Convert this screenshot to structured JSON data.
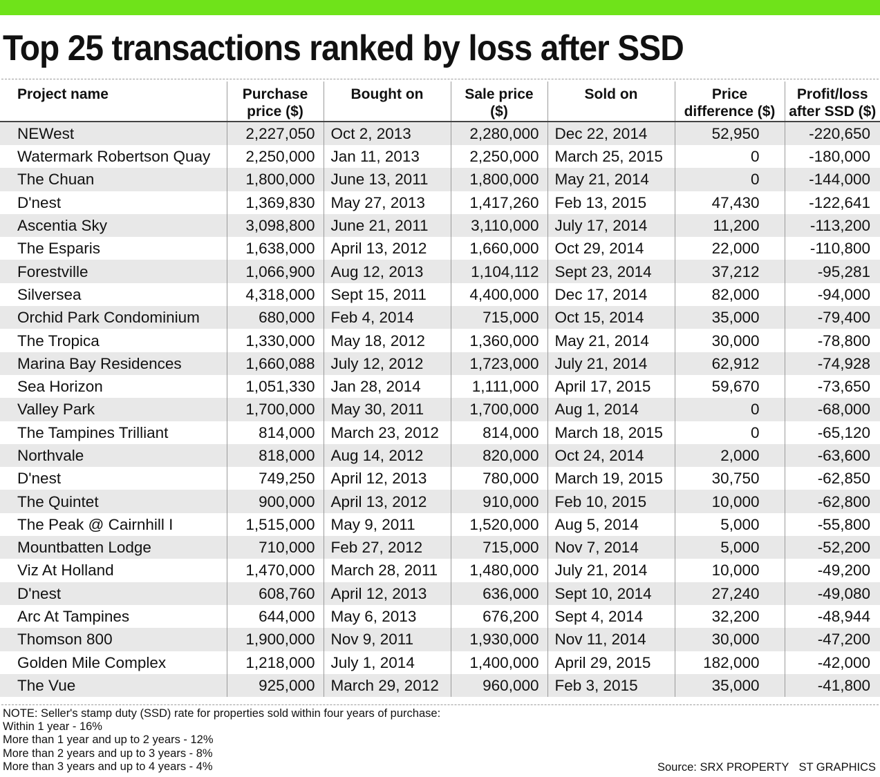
{
  "chart_data": {
    "type": "table",
    "title": "Top 25 transactions ranked by loss after SSD",
    "columns": [
      "Project name",
      "Purchase price ($)",
      "Bought on",
      "Sale price ($)",
      "Sold on",
      "Price difference ($)",
      "Profit/loss after SSD ($)"
    ],
    "rows": [
      {
        "project": "NEWest",
        "purchase": "2,227,050",
        "bought": "Oct 2, 2013",
        "sale": "2,280,000",
        "sold": "Dec 22, 2014",
        "diff": "52,950",
        "pl": "-220,650"
      },
      {
        "project": "Watermark Robertson Quay",
        "purchase": "2,250,000",
        "bought": "Jan 11, 2013",
        "sale": "2,250,000",
        "sold": "March 25, 2015",
        "diff": "0",
        "pl": "-180,000"
      },
      {
        "project": "The Chuan",
        "purchase": "1,800,000",
        "bought": "June 13, 2011",
        "sale": "1,800,000",
        "sold": "May 21, 2014",
        "diff": "0",
        "pl": "-144,000"
      },
      {
        "project": "D'nest",
        "purchase": "1,369,830",
        "bought": "May 27, 2013",
        "sale": "1,417,260",
        "sold": "Feb 13, 2015",
        "diff": "47,430",
        "pl": "-122,641"
      },
      {
        "project": "Ascentia Sky",
        "purchase": "3,098,800",
        "bought": "June 21, 2011",
        "sale": "3,110,000",
        "sold": "July 17, 2014",
        "diff": "11,200",
        "pl": "-113,200"
      },
      {
        "project": "The Esparis",
        "purchase": "1,638,000",
        "bought": "April 13, 2012",
        "sale": "1,660,000",
        "sold": "Oct 29, 2014",
        "diff": "22,000",
        "pl": "-110,800"
      },
      {
        "project": "Forestville",
        "purchase": "1,066,900",
        "bought": "Aug 12, 2013",
        "sale": "1,104,112",
        "sold": "Sept 23, 2014",
        "diff": "37,212",
        "pl": "-95,281"
      },
      {
        "project": "Silversea",
        "purchase": "4,318,000",
        "bought": "Sept 15, 2011",
        "sale": "4,400,000",
        "sold": "Dec 17, 2014",
        "diff": "82,000",
        "pl": "-94,000"
      },
      {
        "project": "Orchid Park Condominium",
        "purchase": "680,000",
        "bought": "Feb 4, 2014",
        "sale": "715,000",
        "sold": "Oct 15, 2014",
        "diff": "35,000",
        "pl": "-79,400"
      },
      {
        "project": "The Tropica",
        "purchase": "1,330,000",
        "bought": "May 18, 2012",
        "sale": "1,360,000",
        "sold": "May 21, 2014",
        "diff": "30,000",
        "pl": "-78,800"
      },
      {
        "project": "Marina Bay Residences",
        "purchase": "1,660,088",
        "bought": "July 12, 2012",
        "sale": "1,723,000",
        "sold": "July 21, 2014",
        "diff": "62,912",
        "pl": "-74,928"
      },
      {
        "project": "Sea Horizon",
        "purchase": "1,051,330",
        "bought": "Jan 28, 2014",
        "sale": "1,111,000",
        "sold": "April 17, 2015",
        "diff": "59,670",
        "pl": "-73,650"
      },
      {
        "project": "Valley Park",
        "purchase": "1,700,000",
        "bought": "May 30, 2011",
        "sale": "1,700,000",
        "sold": "Aug 1, 2014",
        "diff": "0",
        "pl": "-68,000"
      },
      {
        "project": "The Tampines Trilliant",
        "purchase": "814,000",
        "bought": "March 23, 2012",
        "sale": "814,000",
        "sold": "March 18, 2015",
        "diff": "0",
        "pl": "-65,120"
      },
      {
        "project": "Northvale",
        "purchase": "818,000",
        "bought": "Aug 14, 2012",
        "sale": "820,000",
        "sold": "Oct 24, 2014",
        "diff": "2,000",
        "pl": "-63,600"
      },
      {
        "project": "D'nest",
        "purchase": "749,250",
        "bought": "April 12, 2013",
        "sale": "780,000",
        "sold": "March 19, 2015",
        "diff": "30,750",
        "pl": "-62,850"
      },
      {
        "project": "The Quintet",
        "purchase": "900,000",
        "bought": "April 13, 2012",
        "sale": "910,000",
        "sold": "Feb 10, 2015",
        "diff": "10,000",
        "pl": "-62,800"
      },
      {
        "project": "The Peak @ Cairnhill I",
        "purchase": "1,515,000",
        "bought": "May 9, 2011",
        "sale": "1,520,000",
        "sold": "Aug 5, 2014",
        "diff": "5,000",
        "pl": "-55,800"
      },
      {
        "project": "Mountbatten Lodge",
        "purchase": "710,000",
        "bought": "Feb 27, 2012",
        "sale": "715,000",
        "sold": "Nov 7, 2014",
        "diff": "5,000",
        "pl": "-52,200"
      },
      {
        "project": "Viz At Holland",
        "purchase": "1,470,000",
        "bought": "March 28, 2011",
        "sale": "1,480,000",
        "sold": "July 21, 2014",
        "diff": "10,000",
        "pl": "-49,200"
      },
      {
        "project": "D'nest",
        "purchase": "608,760",
        "bought": "April 12, 2013",
        "sale": "636,000",
        "sold": "Sept 10, 2014",
        "diff": "27,240",
        "pl": "-49,080"
      },
      {
        "project": "Arc At Tampines",
        "purchase": "644,000",
        "bought": "May 6, 2013",
        "sale": "676,200",
        "sold": "Sept 4, 2014",
        "diff": "32,200",
        "pl": "-48,944"
      },
      {
        "project": "Thomson 800",
        "purchase": "1,900,000",
        "bought": "Nov 9, 2011",
        "sale": "1,930,000",
        "sold": "Nov 11, 2014",
        "diff": "30,000",
        "pl": "-47,200"
      },
      {
        "project": "Golden Mile Complex",
        "purchase": "1,218,000",
        "bought": "July 1, 2014",
        "sale": "1,400,000",
        "sold": "April 29, 2015",
        "diff": "182,000",
        "pl": "-42,000"
      },
      {
        "project": "The Vue",
        "purchase": "925,000",
        "bought": "March 29, 2012",
        "sale": "960,000",
        "sold": "Feb 3, 2015",
        "diff": "35,000",
        "pl": "-41,800"
      }
    ],
    "notes": [
      "NOTE: Seller's stamp duty (SSD) rate for properties sold within four years of purchase:",
      "Within 1 year - 16%",
      "More than 1 year and up to 2 years - 12%",
      "More than 2 years and up to 3 years - 8%",
      "More than 3 years and up to 4 years - 4%"
    ],
    "source": "Source: SRX PROPERTY",
    "credit": "ST GRAPHICS"
  },
  "colors": {
    "accent_bar": "#6fe31a",
    "row_shade": "#e8e8e8"
  }
}
